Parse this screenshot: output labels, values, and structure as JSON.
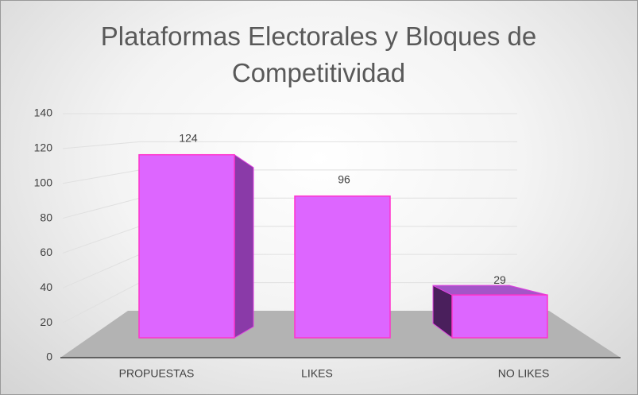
{
  "chart_data": {
    "type": "bar3d",
    "title": "Plataformas Electorales y Bloques de Competitividad",
    "categories": [
      "PROPUESTAS",
      "LIKES",
      "NO LIKES"
    ],
    "values": [
      124,
      96,
      29
    ],
    "color": "#dd66ff",
    "ylim": [
      0,
      140
    ],
    "yticks": [
      0,
      20,
      40,
      60,
      80,
      100,
      120,
      140
    ],
    "grid": true
  }
}
